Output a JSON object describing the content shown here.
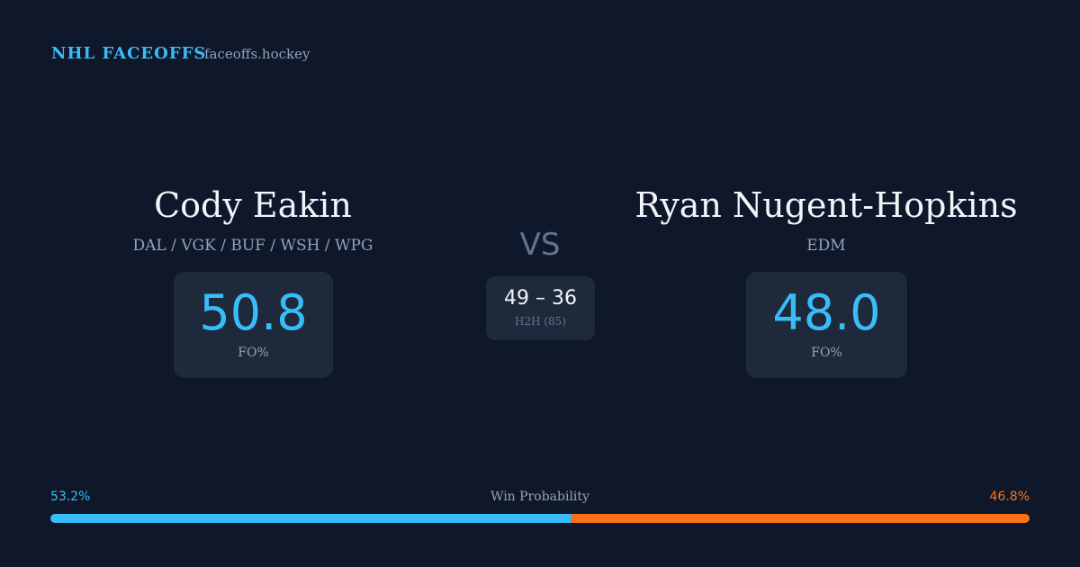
{
  "header": {
    "brand": "NHL FACEOFFS",
    "site": "faceoffs.hockey"
  },
  "left_player": {
    "name": "Cody Eakin",
    "teams": "DAL / VGK / BUF / WSH / WPG",
    "stat": "50.8",
    "stat_label": "FO%"
  },
  "vs": "VS",
  "head_to_head": {
    "score": "49 – 36",
    "label": "H2H (85)"
  },
  "right_player": {
    "name": "Ryan Nugent-Hopkins",
    "teams": "EDM",
    "stat": "48.0",
    "stat_label": "FO%"
  },
  "win_probability": {
    "label": "Win Probability",
    "left": {
      "value": 53.2,
      "label": "53.2%",
      "color": "#38bdf8"
    },
    "right": {
      "value": 46.8,
      "label": "46.8%",
      "color": "#f97316"
    }
  }
}
